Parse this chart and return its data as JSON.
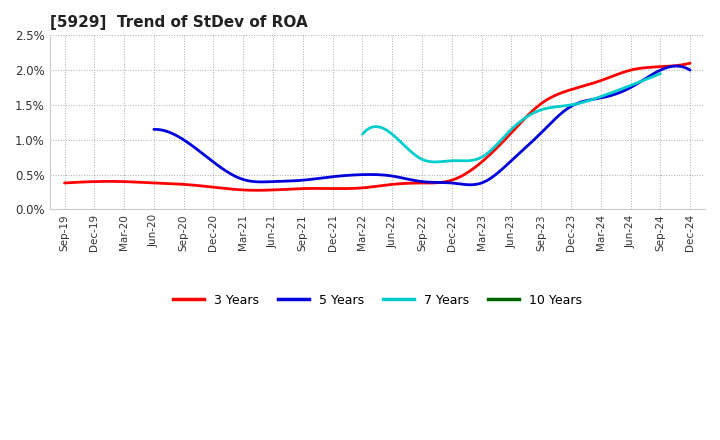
{
  "title": "[5929]  Trend of StDev of ROA",
  "background_color": "#ffffff",
  "grid_color": "#999999",
  "ylim": [
    0.0,
    0.025
  ],
  "yticks": [
    0.0,
    0.005,
    0.01,
    0.015,
    0.02,
    0.025
  ],
  "ytick_labels": [
    "0.0%",
    "0.5%",
    "1.0%",
    "1.5%",
    "2.0%",
    "2.5%"
  ],
  "xtick_labels": [
    "Sep-19",
    "Dec-19",
    "Mar-20",
    "Jun-20",
    "Sep-20",
    "Dec-20",
    "Mar-21",
    "Jun-21",
    "Sep-21",
    "Dec-21",
    "Mar-22",
    "Jun-22",
    "Sep-22",
    "Dec-22",
    "Mar-23",
    "Jun-23",
    "Sep-23",
    "Dec-23",
    "Mar-24",
    "Jun-24",
    "Sep-24",
    "Dec-24"
  ],
  "series": {
    "3 Years": {
      "color": "#ff0000",
      "x": [
        0,
        1,
        2,
        3,
        4,
        5,
        6,
        7,
        8,
        9,
        10,
        11,
        12,
        13,
        14,
        15,
        16,
        17,
        18,
        19,
        20,
        21
      ],
      "y": [
        0.0038,
        0.004,
        0.004,
        0.0038,
        0.0036,
        0.0032,
        0.0028,
        0.0028,
        0.003,
        0.003,
        0.0031,
        0.0036,
        0.0038,
        0.0042,
        0.0068,
        0.011,
        0.0152,
        0.0172,
        0.0185,
        0.02,
        0.0205,
        0.021
      ]
    },
    "5 Years": {
      "color": "#0000dd",
      "x": [
        3,
        4,
        5,
        6,
        7,
        8,
        9,
        10,
        11,
        12,
        13,
        14,
        15,
        16,
        17,
        18,
        19,
        20,
        21
      ],
      "y": [
        0.0115,
        0.01,
        0.0068,
        0.0043,
        0.004,
        0.0042,
        0.0047,
        0.005,
        0.0048,
        0.004,
        0.0038,
        0.0038,
        0.007,
        0.011,
        0.0148,
        0.016,
        0.0175,
        0.02,
        0.02
      ]
    },
    "7 Years": {
      "color": "#00cccc",
      "x": [
        10,
        11,
        12,
        13,
        14,
        15,
        16,
        17,
        18,
        19,
        20
      ],
      "y": [
        0.0108,
        0.0108,
        0.0072,
        0.007,
        0.0075,
        0.0115,
        0.0143,
        0.015,
        0.0162,
        0.0178,
        0.0195
      ]
    },
    "10 Years": {
      "color": "#006600",
      "x": [],
      "y": []
    }
  },
  "legend": {
    "labels": [
      "3 Years",
      "5 Years",
      "7 Years",
      "10 Years"
    ],
    "colors": [
      "#ff0000",
      "#0000dd",
      "#00cccc",
      "#006600"
    ]
  }
}
